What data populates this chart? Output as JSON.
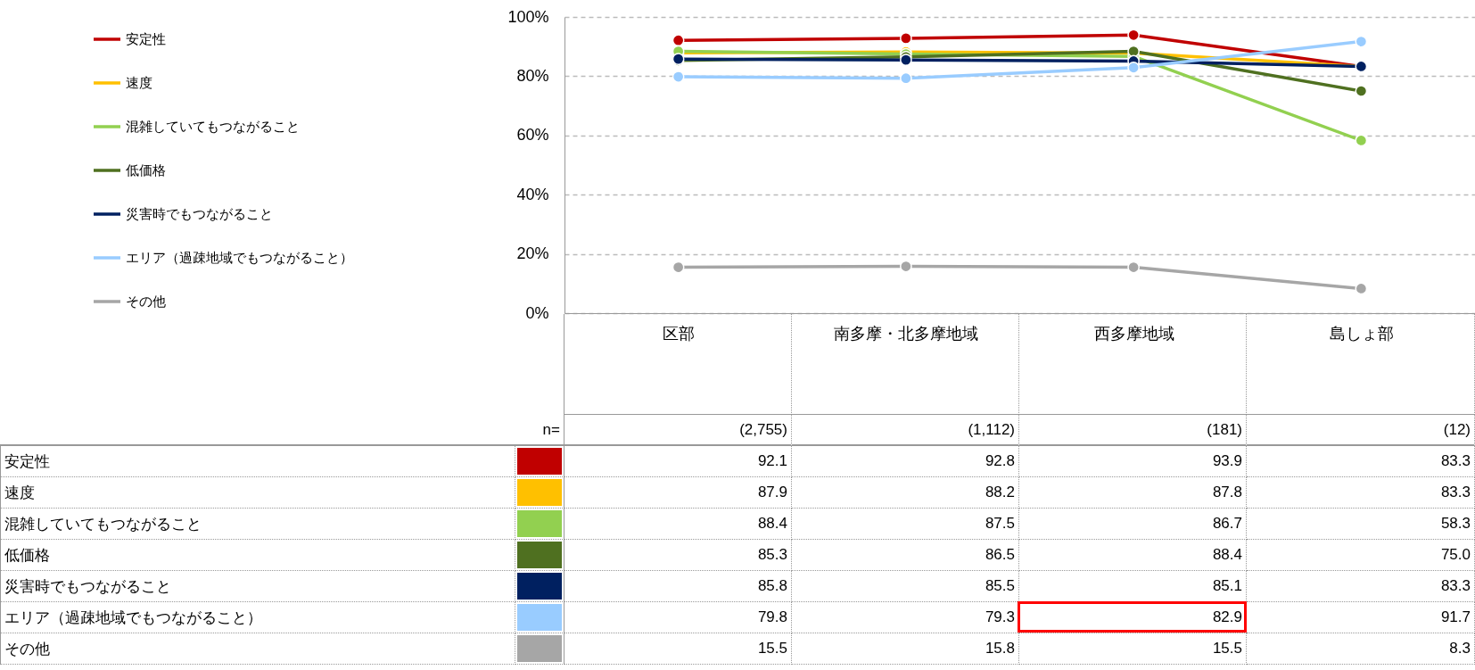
{
  "chart_data": {
    "type": "line",
    "categories": [
      "区部",
      "南多摩・北多摩地域",
      "西多摩地域",
      "島しょ部"
    ],
    "series": [
      {
        "name": "安定性",
        "color": "#c00000",
        "values": [
          92.1,
          92.8,
          93.9,
          83.3
        ],
        "value_labels": [
          "92.1",
          "92.8",
          "93.9",
          "83.3"
        ]
      },
      {
        "name": "速度",
        "color": "#ffc000",
        "values": [
          87.9,
          88.2,
          87.8,
          83.3
        ],
        "value_labels": [
          "87.9",
          "88.2",
          "87.8",
          "83.3"
        ]
      },
      {
        "name": "混雑していてもつながること",
        "color": "#92d050",
        "values": [
          88.4,
          87.5,
          86.7,
          58.3
        ],
        "value_labels": [
          "88.4",
          "87.5",
          "86.7",
          "58.3"
        ]
      },
      {
        "name": "低価格",
        "color": "#4f7020",
        "values": [
          85.3,
          86.5,
          88.4,
          75.0
        ],
        "value_labels": [
          "85.3",
          "86.5",
          "88.4",
          "75.0"
        ]
      },
      {
        "name": "災害時でもつながること",
        "color": "#002060",
        "values": [
          85.8,
          85.5,
          85.1,
          83.3
        ],
        "value_labels": [
          "85.8",
          "85.5",
          "85.1",
          "83.3"
        ]
      },
      {
        "name": "エリア（過疎地域でもつながること）",
        "color": "#99ccff",
        "values": [
          79.8,
          79.3,
          82.9,
          91.7
        ],
        "value_labels": [
          "79.8",
          "79.3",
          "82.9",
          "91.7"
        ]
      },
      {
        "name": "その他",
        "color": "#a6a6a6",
        "values": [
          15.5,
          15.8,
          15.5,
          8.3
        ],
        "value_labels": [
          "15.5",
          "15.8",
          "15.5",
          "8.3"
        ]
      }
    ],
    "ylim": [
      0,
      100
    ],
    "yticks": [
      {
        "value": 0,
        "label": "0%"
      },
      {
        "value": 20,
        "label": "20%"
      },
      {
        "value": 40,
        "label": "40%"
      },
      {
        "value": 60,
        "label": "60%"
      },
      {
        "value": 80,
        "label": "80%"
      },
      {
        "value": 100,
        "label": "100%"
      }
    ],
    "grid": "y",
    "legend": "left",
    "marker": "circle",
    "line_style": "solid",
    "annotations": [
      "n=",
      "(2,755)",
      "(1,112)",
      "(181)",
      "(12)"
    ]
  }
}
